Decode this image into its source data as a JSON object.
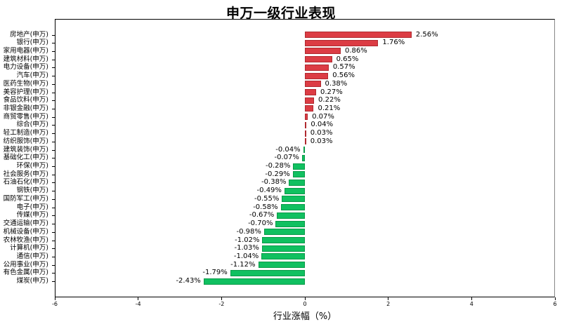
{
  "chart_data": {
    "type": "bar",
    "orientation": "horizontal",
    "title": "申万一级行业表现",
    "xlabel": "行业涨幅（%）",
    "ylabel": "",
    "xlim": [
      -6,
      6
    ],
    "xticks": [
      -6,
      -4,
      -2,
      0,
      2,
      4,
      6
    ],
    "grid": false,
    "legend": null,
    "colors": {
      "positive": "#dc3c44",
      "negative": "#10c060"
    },
    "categories": [
      "房地产(申万)",
      "银行(申万)",
      "家用电器(申万)",
      "建筑材料(申万)",
      "电力设备(申万)",
      "汽车(申万)",
      "医药生物(申万)",
      "美容护理(申万)",
      "食品饮料(申万)",
      "非银金融(申万)",
      "商贸零售(申万)",
      "综合(申万)",
      "轻工制造(申万)",
      "纺织服饰(申万)",
      "建筑装饰(申万)",
      "基础化工(申万)",
      "环保(申万)",
      "社会服务(申万)",
      "石油石化(申万)",
      "钢铁(申万)",
      "国防军工(申万)",
      "电子(申万)",
      "传媒(申万)",
      "交通运输(申万)",
      "机械设备(申万)",
      "农林牧渔(申万)",
      "计算机(申万)",
      "通信(申万)",
      "公用事业(申万)",
      "有色金属(申万)",
      "煤炭(申万)"
    ],
    "values": [
      2.56,
      1.76,
      0.86,
      0.65,
      0.57,
      0.56,
      0.38,
      0.27,
      0.22,
      0.21,
      0.07,
      0.04,
      0.03,
      0.03,
      -0.04,
      -0.07,
      -0.28,
      -0.29,
      -0.38,
      -0.49,
      -0.55,
      -0.58,
      -0.67,
      -0.7,
      -0.98,
      -1.02,
      -1.03,
      -1.04,
      -1.12,
      -1.79,
      -2.43
    ],
    "value_labels": [
      "2.56%",
      "1.76%",
      "0.86%",
      "0.65%",
      "0.57%",
      "0.56%",
      "0.38%",
      "0.27%",
      "0.22%",
      "0.21%",
      "0.07%",
      "0.04%",
      "0.03%",
      "0.03%",
      "-0.04%",
      "-0.07%",
      "-0.28%",
      "-0.29%",
      "-0.38%",
      "-0.49%",
      "-0.55%",
      "-0.58%",
      "-0.67%",
      "-0.70%",
      "-0.98%",
      "-1.02%",
      "-1.03%",
      "-1.04%",
      "-1.12%",
      "-1.79%",
      "-2.43%"
    ]
  }
}
